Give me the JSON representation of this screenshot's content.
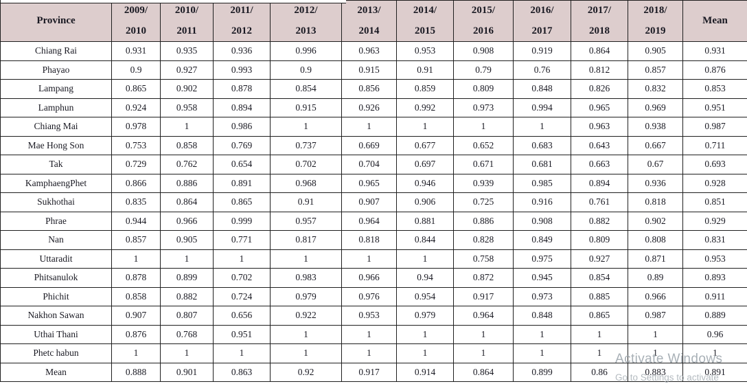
{
  "watermark": {
    "title": "Activate Windows",
    "subtitle": "Go to Settings to activate"
  },
  "colors": {
    "header_bg": "#ddcdcd",
    "border": "#1e1e1e",
    "text": "#191922",
    "watermark_text": "#9fa8af"
  },
  "table": {
    "header": [
      "Province",
      "2009/\n2010",
      "2010/\n2011",
      "2011/\n2012",
      "2012/\n2013",
      "2013/\n2014",
      "2014/\n2015",
      "2015/\n2016",
      "2016/\n2017",
      "2017/\n2018",
      "2018/\n2019",
      "Mean"
    ],
    "rows": [
      {
        "province": "Chiang Rai",
        "values": [
          "0.931",
          "0.935",
          "0.936",
          "0.996",
          "0.963",
          "0.953",
          "0.908",
          "0.919",
          "0.864",
          "0.905",
          "0.931"
        ]
      },
      {
        "province": "Phayao",
        "values": [
          "0.9",
          "0.927",
          "0.993",
          "0.9",
          "0.915",
          "0.91",
          "0.79",
          "0.76",
          "0.812",
          "0.857",
          "0.876"
        ]
      },
      {
        "province": "Lampang",
        "values": [
          "0.865",
          "0.902",
          "0.878",
          "0.854",
          "0.856",
          "0.859",
          "0.809",
          "0.848",
          "0.826",
          "0.832",
          "0.853"
        ]
      },
      {
        "province": "Lamphun",
        "values": [
          "0.924",
          "0.958",
          "0.894",
          "0.915",
          "0.926",
          "0.992",
          "0.973",
          "0.994",
          "0.965",
          "0.969",
          "0.951"
        ]
      },
      {
        "province": "Chiang Mai",
        "values": [
          "0.978",
          "1",
          "0.986",
          "1",
          "1",
          "1",
          "1",
          "1",
          "0.963",
          "0.938",
          "0.987"
        ]
      },
      {
        "province": "Mae Hong Son",
        "values": [
          "0.753",
          "0.858",
          "0.769",
          "0.737",
          "0.669",
          "0.677",
          "0.652",
          "0.683",
          "0.643",
          "0.667",
          "0.711"
        ]
      },
      {
        "province": "Tak",
        "values": [
          "0.729",
          "0.762",
          "0.654",
          "0.702",
          "0.704",
          "0.697",
          "0.671",
          "0.681",
          "0.663",
          "0.67",
          "0.693"
        ]
      },
      {
        "province": "KamphaengPhet",
        "values": [
          "0.866",
          "0.886",
          "0.891",
          "0.968",
          "0.965",
          "0.946",
          "0.939",
          "0.985",
          "0.894",
          "0.936",
          "0.928"
        ]
      },
      {
        "province": "Sukhothai",
        "values": [
          "0.835",
          "0.864",
          "0.865",
          "0.91",
          "0.907",
          "0.906",
          "0.725",
          "0.916",
          "0.761",
          "0.818",
          "0.851"
        ]
      },
      {
        "province": "Phrae",
        "values": [
          "0.944",
          "0.966",
          "0.999",
          "0.957",
          "0.964",
          "0.881",
          "0.886",
          "0.908",
          "0.882",
          "0.902",
          "0.929"
        ]
      },
      {
        "province": "Nan",
        "values": [
          "0.857",
          "0.905",
          "0.771",
          "0.817",
          "0.818",
          "0.844",
          "0.828",
          "0.849",
          "0.809",
          "0.808",
          "0.831"
        ]
      },
      {
        "province": "Uttaradit",
        "values": [
          "1",
          "1",
          "1",
          "1",
          "1",
          "1",
          "0.758",
          "0.975",
          "0.927",
          "0.871",
          "0.953"
        ]
      },
      {
        "province": "Phitsanulok",
        "values": [
          "0.878",
          "0.899",
          "0.702",
          "0.983",
          "0.966",
          "0.94",
          "0.872",
          "0.945",
          "0.854",
          "0.89",
          "0.893"
        ]
      },
      {
        "province": "Phichit",
        "values": [
          "0.858",
          "0.882",
          "0.724",
          "0.979",
          "0.976",
          "0.954",
          "0.917",
          "0.973",
          "0.885",
          "0.966",
          "0.911"
        ]
      },
      {
        "province": "Nakhon Sawan",
        "values": [
          "0.907",
          "0.807",
          "0.656",
          "0.922",
          "0.953",
          "0.979",
          "0.964",
          "0.848",
          "0.865",
          "0.987",
          "0.889"
        ]
      },
      {
        "province": "Uthai Thani",
        "values": [
          "0.876",
          "0.768",
          "0.951",
          "1",
          "1",
          "1",
          "1",
          "1",
          "1",
          "1",
          "0.96"
        ]
      },
      {
        "province": "Phetc habun",
        "values": [
          "1",
          "1",
          "1",
          "1",
          "1",
          "1",
          "1",
          "1",
          "1",
          "1",
          "1"
        ]
      },
      {
        "province": "Mean",
        "values": [
          "0.888",
          "0.901",
          "0.863",
          "0.92",
          "0.917",
          "0.914",
          "0.864",
          "0.899",
          "0.86",
          "0.883",
          "0.891"
        ]
      }
    ]
  }
}
